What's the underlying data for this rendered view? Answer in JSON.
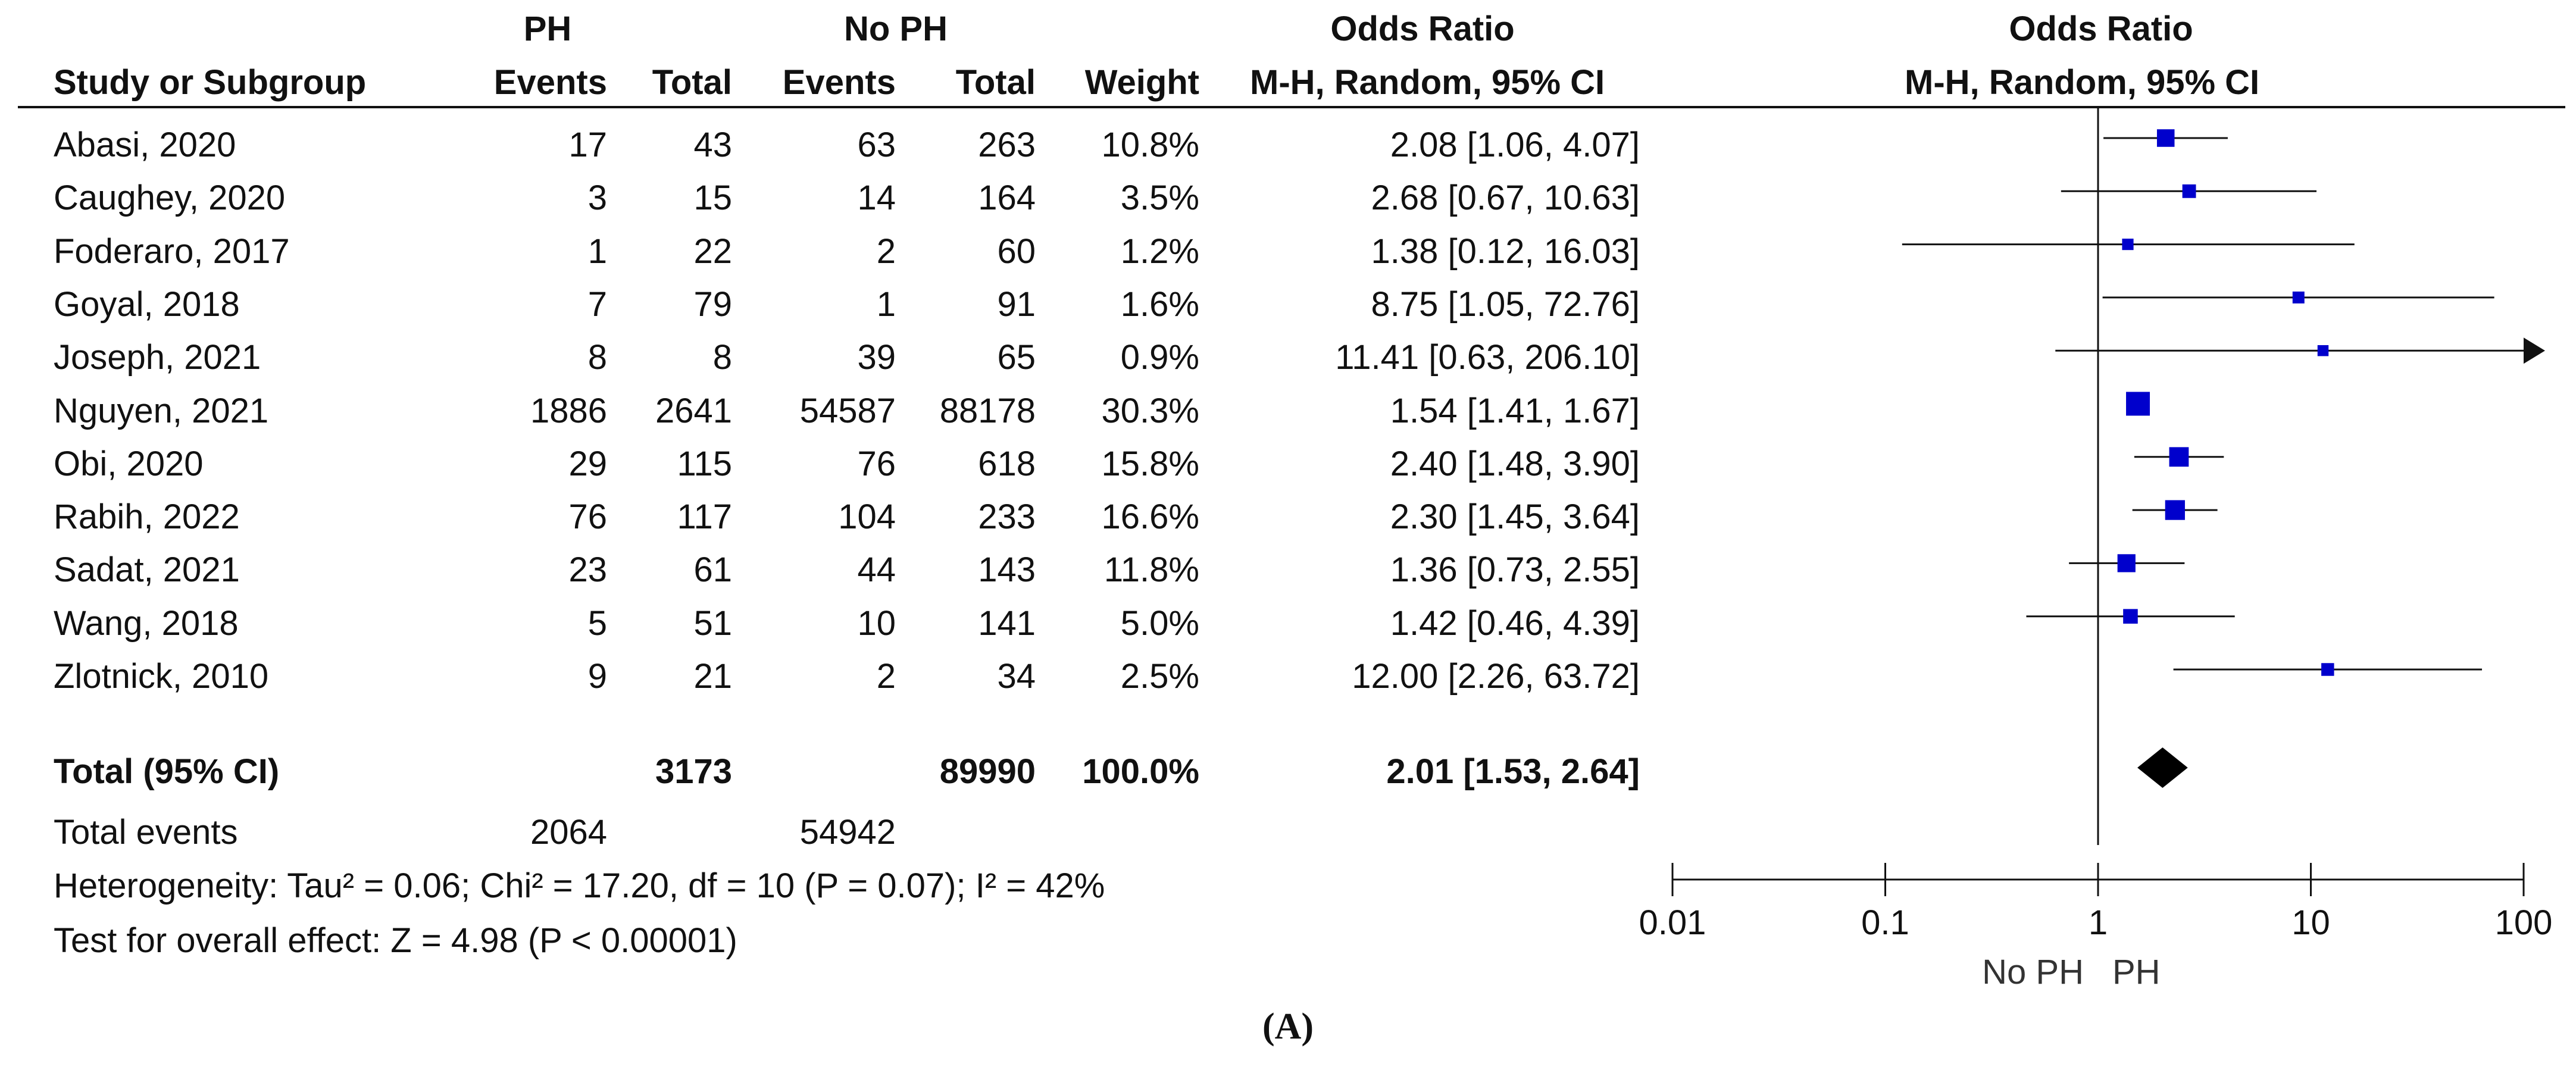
{
  "header": {
    "group_ph": "PH",
    "group_noph": "No PH",
    "or_label": "Odds Ratio",
    "study_col": "Study or Subgroup",
    "events": "Events",
    "total": "Total",
    "weight": "Weight",
    "method": "M-H, Random, 95% CI",
    "plot_title": "Odds Ratio",
    "plot_method": "M-H, Random, 95% CI"
  },
  "studies": [
    {
      "name": "Abasi, 2020",
      "ph_events": "17",
      "ph_total": "43",
      "noph_events": "63",
      "noph_total": "263",
      "weight": "10.8%",
      "ci": "2.08 [1.06, 4.07]"
    },
    {
      "name": "Caughey, 2020",
      "ph_events": "3",
      "ph_total": "15",
      "noph_events": "14",
      "noph_total": "164",
      "weight": "3.5%",
      "ci": "2.68 [0.67, 10.63]"
    },
    {
      "name": "Foderaro, 2017",
      "ph_events": "1",
      "ph_total": "22",
      "noph_events": "2",
      "noph_total": "60",
      "weight": "1.2%",
      "ci": "1.38 [0.12, 16.03]"
    },
    {
      "name": "Goyal, 2018",
      "ph_events": "7",
      "ph_total": "79",
      "noph_events": "1",
      "noph_total": "91",
      "weight": "1.6%",
      "ci": "8.75 [1.05, 72.76]"
    },
    {
      "name": "Joseph, 2021",
      "ph_events": "8",
      "ph_total": "8",
      "noph_events": "39",
      "noph_total": "65",
      "weight": "0.9%",
      "ci": "11.41 [0.63, 206.10]"
    },
    {
      "name": "Nguyen, 2021",
      "ph_events": "1886",
      "ph_total": "2641",
      "noph_events": "54587",
      "noph_total": "88178",
      "weight": "30.3%",
      "ci": "1.54 [1.41, 1.67]"
    },
    {
      "name": "Obi, 2020",
      "ph_events": "29",
      "ph_total": "115",
      "noph_events": "76",
      "noph_total": "618",
      "weight": "15.8%",
      "ci": "2.40 [1.48, 3.90]"
    },
    {
      "name": "Rabih, 2022",
      "ph_events": "76",
      "ph_total": "117",
      "noph_events": "104",
      "noph_total": "233",
      "weight": "16.6%",
      "ci": "2.30 [1.45, 3.64]"
    },
    {
      "name": "Sadat, 2021",
      "ph_events": "23",
      "ph_total": "61",
      "noph_events": "44",
      "noph_total": "143",
      "weight": "11.8%",
      "ci": "1.36 [0.73, 2.55]"
    },
    {
      "name": "Wang, 2018",
      "ph_events": "5",
      "ph_total": "51",
      "noph_events": "10",
      "noph_total": "141",
      "weight": "5.0%",
      "ci": "1.42 [0.46, 4.39]"
    },
    {
      "name": "Zlotnick, 2010",
      "ph_events": "9",
      "ph_total": "21",
      "noph_events": "2",
      "noph_total": "34",
      "weight": "2.5%",
      "ci": "12.00 [2.26, 63.72]"
    }
  ],
  "total_row": {
    "label": "Total (95% CI)",
    "ph_total": "3173",
    "noph_total": "89990",
    "weight": "100.0%",
    "ci": "2.01 [1.53, 2.64]"
  },
  "events_row": {
    "label": "Total events",
    "ph_events": "2064",
    "noph_events": "54942"
  },
  "heterogeneity": "Heterogeneity: Tau² = 0.06; Chi² = 17.20, df = 10 (P = 0.07); I² = 42%",
  "overall_effect": "Test for overall effect: Z = 4.98 (P < 0.00001)",
  "caption": "(A)",
  "chart_data": {
    "type": "scatter",
    "scale": "log",
    "xlim": [
      0.01,
      100
    ],
    "ticks": [
      "0.01",
      "0.1",
      "1",
      "10",
      "100"
    ],
    "tick_values": [
      0.01,
      0.1,
      1,
      10,
      100
    ],
    "favours_left": "No PH",
    "favours_right": "PH",
    "marker_color": "#0000cc",
    "studies": [
      {
        "or": 2.08,
        "lo": 1.06,
        "hi": 4.07,
        "weight": 10.8
      },
      {
        "or": 2.68,
        "lo": 0.67,
        "hi": 10.63,
        "weight": 3.5
      },
      {
        "or": 1.38,
        "lo": 0.12,
        "hi": 16.03,
        "weight": 1.2
      },
      {
        "or": 8.75,
        "lo": 1.05,
        "hi": 72.76,
        "weight": 1.6
      },
      {
        "or": 11.41,
        "lo": 0.63,
        "hi": 206.1,
        "weight": 0.9
      },
      {
        "or": 1.54,
        "lo": 1.41,
        "hi": 1.67,
        "weight": 30.3
      },
      {
        "or": 2.4,
        "lo": 1.48,
        "hi": 3.9,
        "weight": 15.8
      },
      {
        "or": 2.3,
        "lo": 1.45,
        "hi": 3.64,
        "weight": 16.6
      },
      {
        "or": 1.36,
        "lo": 0.73,
        "hi": 2.55,
        "weight": 11.8
      },
      {
        "or": 1.42,
        "lo": 0.46,
        "hi": 4.39,
        "weight": 5.0
      },
      {
        "or": 12.0,
        "lo": 2.26,
        "hi": 63.72,
        "weight": 2.5
      }
    ],
    "pooled": {
      "or": 2.01,
      "lo": 1.53,
      "hi": 2.64
    }
  }
}
